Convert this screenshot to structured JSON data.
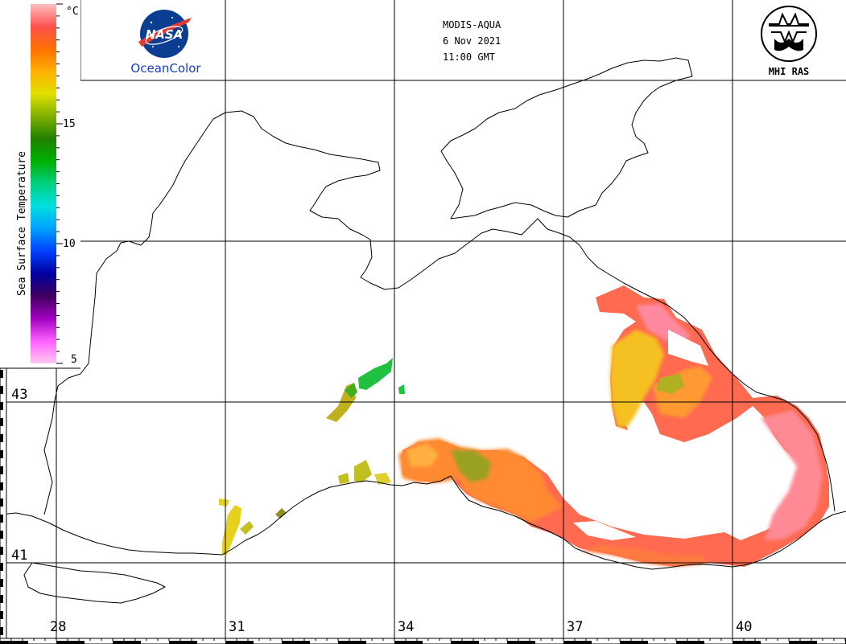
{
  "header": {
    "satellite": "MODIS-AQUA",
    "date": "6 Nov 2021",
    "time": "11:00 GMT"
  },
  "logos": {
    "nasa_wordmark": "NASA",
    "oceancolor_label": "OceanColor",
    "mhi_label": "MHI RAS"
  },
  "legend": {
    "title": "Sea Surface Temperature",
    "unit": "°C",
    "ticks": [
      "5",
      "10",
      "15"
    ],
    "min": 5,
    "max": 20,
    "colors": [
      "#ffc8f0",
      "#ff60ff",
      "#a000c0",
      "#400060",
      "#0000a0",
      "#0040ff",
      "#00a0ff",
      "#00e0e0",
      "#00d080",
      "#00b000",
      "#208000",
      "#80b000",
      "#e0e000",
      "#ffb000",
      "#ff7000",
      "#ff5050",
      "#ffc0c0"
    ]
  },
  "axes": {
    "longitude_labels": [
      "28",
      "31",
      "34",
      "37",
      "40"
    ],
    "latitude_labels": [
      "43",
      "41"
    ]
  },
  "colors": {
    "background": "#ffffff",
    "land_outline": "#000000",
    "nasa_blue": "#0b3d91",
    "nasa_red": "#e03c31"
  }
}
